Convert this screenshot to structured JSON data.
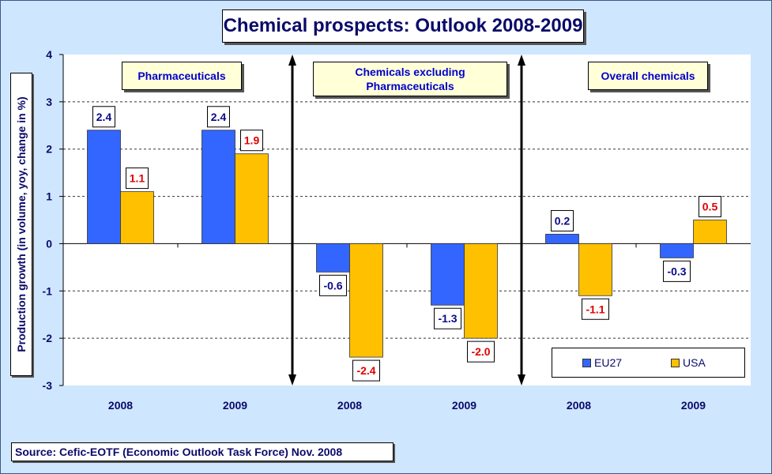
{
  "title": "Chemical prospects: Outlook 2008-2009",
  "source": "Source: Cefic-EOTF  (Economic Outlook Task Force) Nov. 2008",
  "groups": [
    {
      "label": "Pharmaceuticals"
    },
    {
      "label": "Chemicals excluding Pharmaceuticals"
    },
    {
      "label": "Overall chemicals"
    }
  ],
  "legend": {
    "eu": "EU27",
    "usa": "USA"
  },
  "colors": {
    "eu": "#3366ff",
    "usa": "#ffc000",
    "eu_label": "#0a0a8a",
    "usa_label": "#e00000"
  },
  "chart_data": {
    "type": "bar",
    "title": "Chemical prospects: Outlook 2008-2009",
    "ylabel": "Production growth (in volume, yoy, change in %)",
    "ylim": [
      -3,
      4
    ],
    "yticks": [
      "4",
      "3",
      "2",
      "1",
      "0",
      "-1",
      "-2",
      "-3"
    ],
    "categories": [
      "2008",
      "2009",
      "2008",
      "2009",
      "2008",
      "2009"
    ],
    "series": [
      {
        "name": "EU27",
        "values": [
          2.4,
          2.4,
          -0.6,
          -1.3,
          0.2,
          -0.3
        ],
        "labels": [
          "2.4",
          "2.4",
          "-0.6",
          "-1.3",
          "0.2",
          "-0.3"
        ]
      },
      {
        "name": "USA",
        "values": [
          1.1,
          1.9,
          -2.4,
          -2.0,
          -1.1,
          0.5
        ],
        "labels": [
          "1.1",
          "1.9",
          "-2.4",
          "-2.0",
          "-1.1",
          "0.5"
        ]
      }
    ],
    "grid": "horizontal dashed",
    "legend_position": "bottom-right"
  }
}
